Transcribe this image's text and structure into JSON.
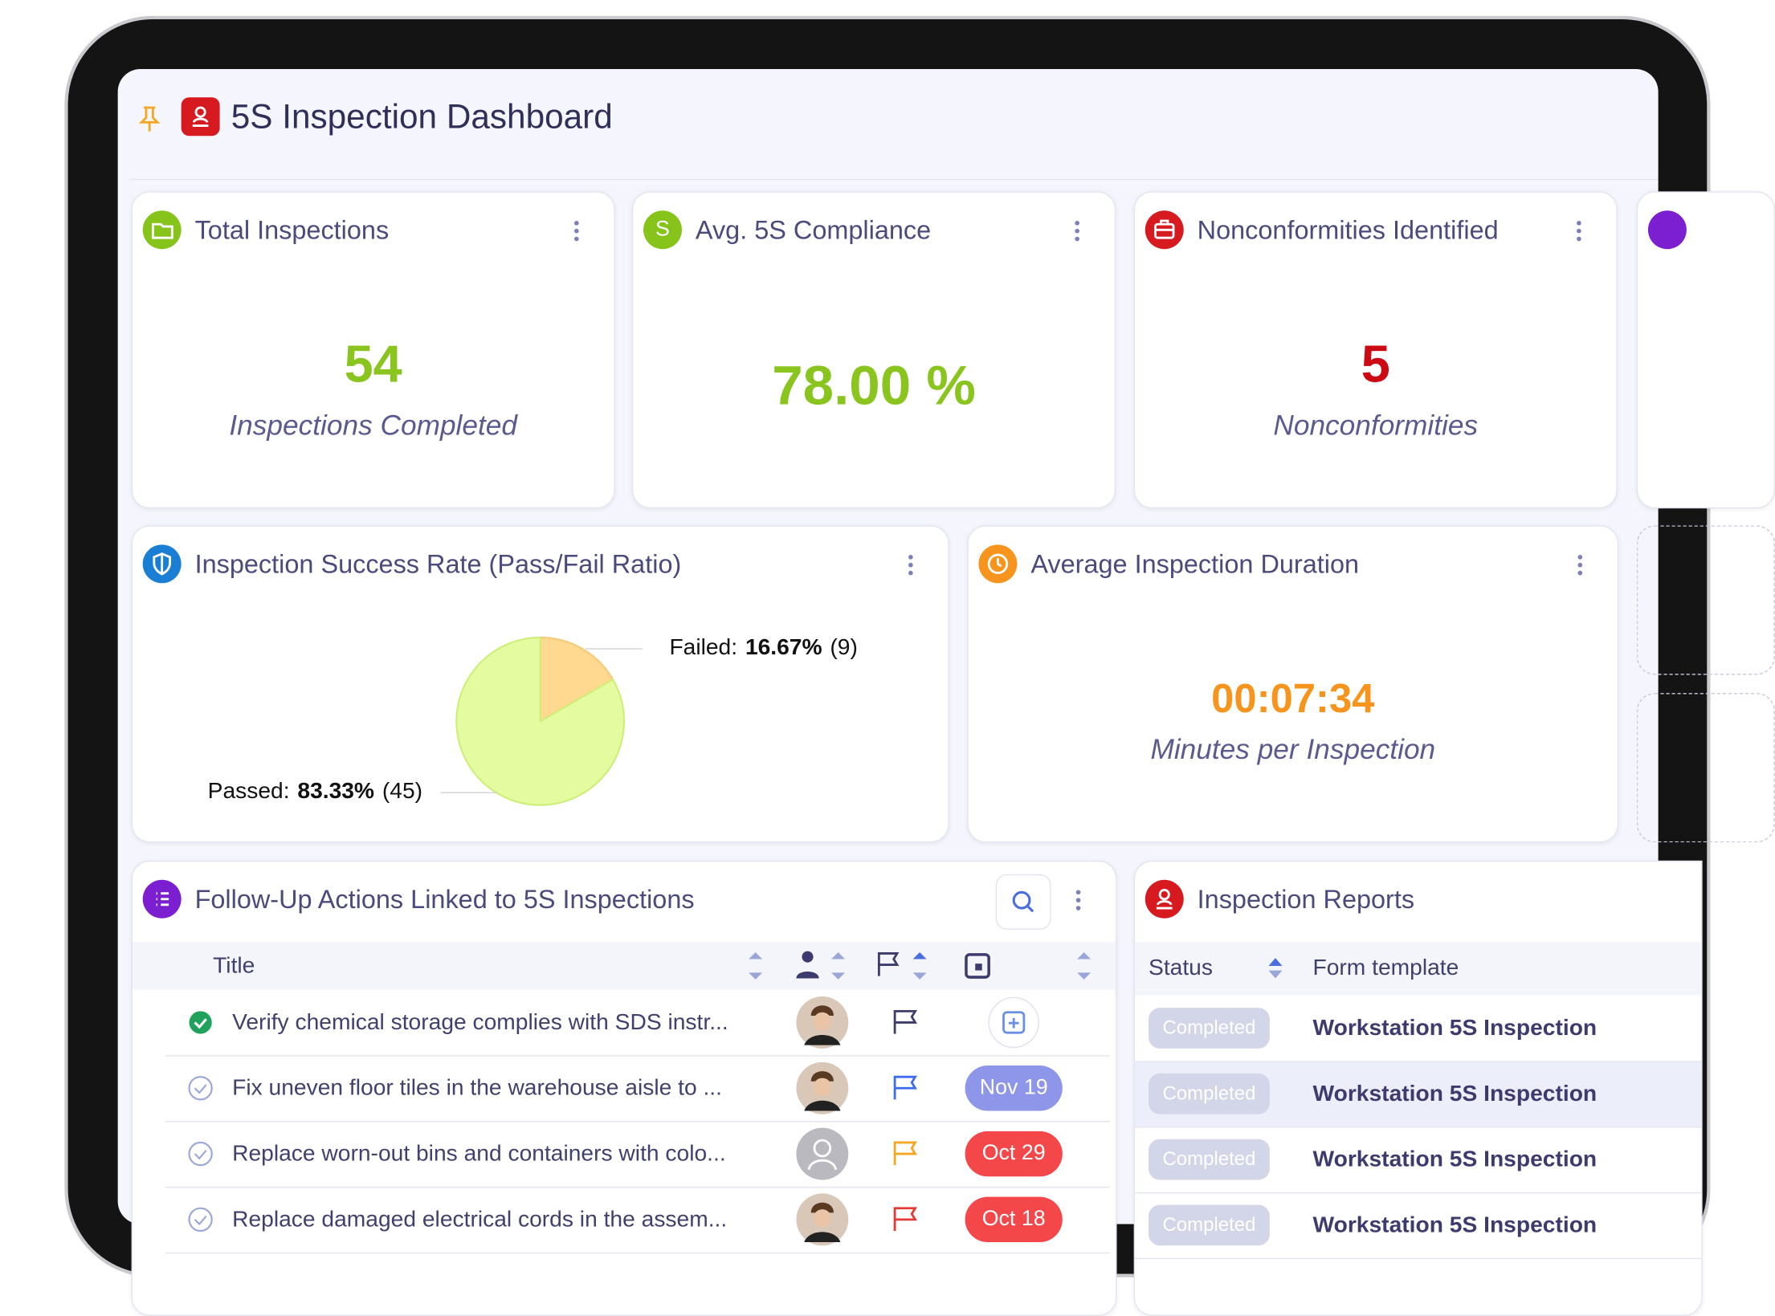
{
  "header": {
    "title": "5S Inspection Dashboard"
  },
  "kpi_cards": [
    {
      "title": "Total Inspections",
      "value": "54",
      "subtitle": "Inspections Completed"
    },
    {
      "title": "Avg. 5S Compliance",
      "icon_text": "S",
      "value": "78.00 %"
    },
    {
      "title": "Nonconformities Identified",
      "value": "5",
      "subtitle": "Nonconformities"
    }
  ],
  "chart_data": {
    "type": "pie",
    "title": "Inspection Success Rate (Pass/Fail Ratio)",
    "categories": [
      "Failed:",
      "Passed:"
    ],
    "values": [
      16.67,
      83.33
    ],
    "value_labels": [
      "16.67%",
      "83.33%"
    ],
    "count_labels": [
      "(9)",
      "(45)"
    ],
    "colors": [
      "#ffd98f",
      "#e4fb9f"
    ]
  },
  "duration_card": {
    "title": "Average Inspection Duration",
    "value": "00:07:34",
    "subtitle": "Minutes per Inspection"
  },
  "actions": {
    "title": "Follow-Up Actions Linked to 5S Inspections",
    "columns": [
      "Title"
    ],
    "rows": [
      {
        "title": "Verify chemical storage complies with SDS instr...",
        "done": true,
        "flag": "#3d3d6b"
      },
      {
        "title": "Fix uneven floor tiles in the warehouse aisle to ...",
        "done": false,
        "flag": "#3d6cf0",
        "due": "Nov 19",
        "due_color": "#8e96ea"
      },
      {
        "title": "Replace worn-out bins and containers with colo...",
        "done": false,
        "flag": "#f5a623",
        "due": "Oct 29",
        "due_color": "#f4474a"
      },
      {
        "title": "Replace damaged electrical cords in the assem...",
        "done": false,
        "flag": "#e53935",
        "due": "Oct 18",
        "due_color": "#f4474a"
      }
    ]
  },
  "reports": {
    "title": "Inspection Reports",
    "columns": [
      "Status",
      "Form template"
    ],
    "rows": [
      [
        "Completed",
        "Workstation 5S Inspection"
      ],
      [
        "Completed",
        "Workstation 5S Inspection"
      ],
      [
        "Completed",
        "Workstation 5S Inspection"
      ],
      [
        "Completed",
        "Workstation 5S Inspection"
      ]
    ]
  }
}
